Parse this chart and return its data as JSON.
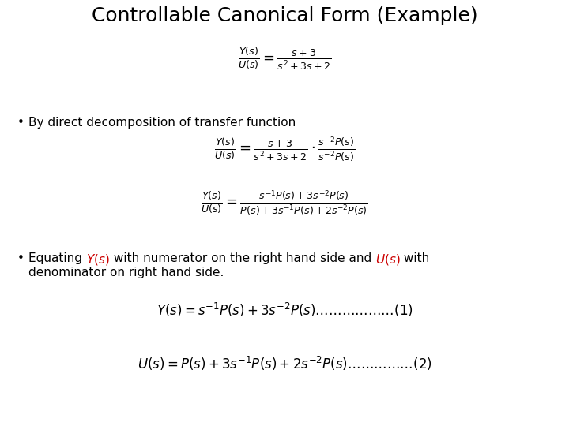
{
  "title": "Controllable Canonical Form (Example)",
  "title_fontsize": 18,
  "body_fontsize": 11,
  "eq_fontsize": 13,
  "background_color": "#ffffff",
  "text_color": "#000000",
  "red_color": "#cc0000",
  "bullet1": "By direct decomposition of transfer function",
  "bullet2_line2": "denominator on right hand side."
}
